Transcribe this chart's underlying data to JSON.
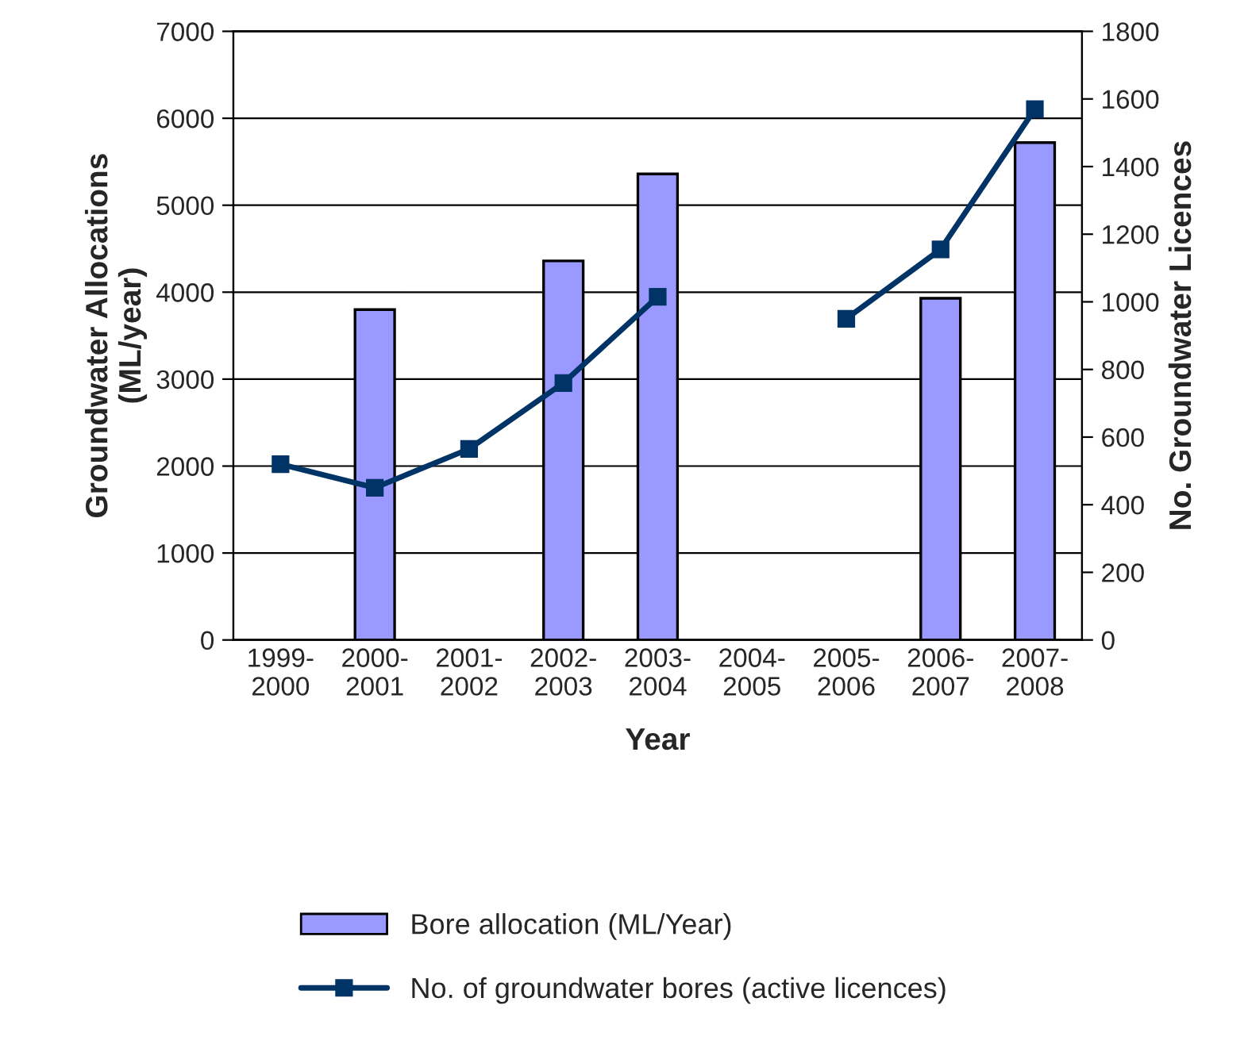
{
  "chart_data": {
    "type": "bar",
    "xlabel": "Year",
    "ylabel": "Groundwater Allocations\n(ML/year)",
    "y2label": "No. Groundwater Licences",
    "categories": [
      "1999-\n2000",
      "2000-\n2001",
      "2001-\n2002",
      "2002-\n2003",
      "2003-\n2004",
      "2004-\n2005",
      "2005-\n2006",
      "2006-\n2007",
      "2007-\n2008"
    ],
    "series": [
      {
        "name": "Bore allocation (ML/Year)",
        "color": "#9999ff",
        "values": [
          null,
          3800,
          null,
          4360,
          5360,
          null,
          null,
          3930,
          5720
        ]
      },
      {
        "name": "No. of groundwater bores (active licences)",
        "type": "line",
        "axis": "y2",
        "color": "#003366",
        "marker": "square",
        "values": [
          520,
          450,
          565,
          760,
          1015,
          null,
          950,
          1155,
          1570
        ]
      }
    ],
    "ylim": [
      0,
      7000
    ],
    "yticks": [
      0,
      1000,
      2000,
      3000,
      4000,
      5000,
      6000,
      7000
    ],
    "y2lim": [
      0,
      1800
    ],
    "y2ticks": [
      0,
      200,
      400,
      600,
      800,
      1000,
      1200,
      1400,
      1600,
      1800
    ],
    "grid": "y",
    "legend": "bottom"
  }
}
